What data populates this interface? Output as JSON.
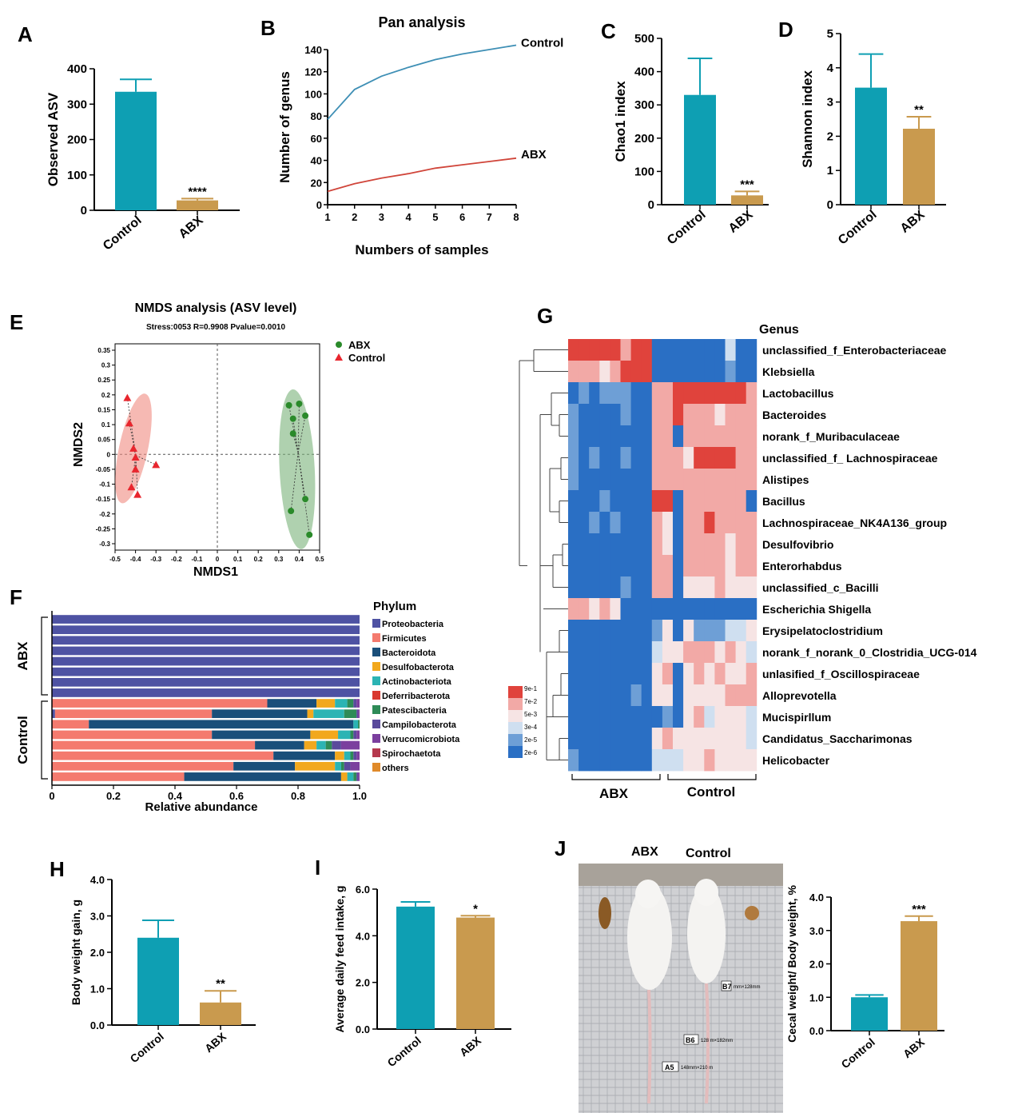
{
  "colors": {
    "control": "#0e9fb3",
    "abx": "#c99a4e",
    "phylum_blue": "#4e52a3",
    "heat_high": "#d73027",
    "heat_low": "#2166c9",
    "nmds_abx": "#2a8a2a",
    "nmds_control": "#e8262e"
  },
  "chart_data": [
    {
      "panel": "A",
      "type": "bar",
      "title": "",
      "ylabel": "Observed ASV",
      "categories": [
        "Control",
        "ABX"
      ],
      "values": [
        335,
        28
      ],
      "errors": [
        35,
        5
      ],
      "ylim": [
        0,
        400
      ],
      "yticks": [
        "0",
        "100",
        "200",
        "300",
        "400"
      ],
      "significance": [
        "",
        "****"
      ]
    },
    {
      "panel": "B",
      "type": "line",
      "title": "Pan analysis",
      "xlabel": "Numbers of samples",
      "ylabel": "Number of genus",
      "xlim": [
        1,
        8
      ],
      "ylim": [
        0,
        140
      ],
      "xticks": [
        "1",
        "2",
        "3",
        "4",
        "5",
        "6",
        "7",
        "8"
      ],
      "yticks": [
        "0",
        "20",
        "40",
        "60",
        "80",
        "100",
        "120",
        "140"
      ],
      "x": [
        1,
        2,
        3,
        4,
        5,
        6,
        7,
        8
      ],
      "series": [
        {
          "name": "Control",
          "values": [
            77,
            104,
            116,
            124,
            131,
            136,
            140,
            144
          ]
        },
        {
          "name": "ABX",
          "values": [
            12,
            19,
            24,
            28,
            33,
            36,
            39,
            42
          ]
        }
      ]
    },
    {
      "panel": "C",
      "type": "bar",
      "title": "",
      "ylabel": "Chao1 index",
      "categories": [
        "Control",
        "ABX"
      ],
      "values": [
        330,
        28
      ],
      "errors": [
        110,
        12
      ],
      "ylim": [
        0,
        500
      ],
      "yticks": [
        "0",
        "100",
        "200",
        "300",
        "400",
        "500"
      ],
      "significance": [
        "",
        "***"
      ]
    },
    {
      "panel": "D",
      "type": "bar",
      "title": "",
      "ylabel": "Shannon index",
      "categories": [
        "Control",
        "ABX"
      ],
      "values": [
        3.42,
        2.22
      ],
      "errors": [
        0.98,
        0.35
      ],
      "ylim": [
        0,
        5
      ],
      "yticks": [
        "0",
        "1",
        "2",
        "3",
        "4",
        "5"
      ],
      "significance": [
        "",
        "**"
      ]
    },
    {
      "panel": "E",
      "type": "scatter",
      "title": "NMDS analysis (ASV level)",
      "subtitle": "Stress:0053 R=0.9908 Pvalue=0.0010",
      "xlabel": "NMDS1",
      "ylabel": "NMDS2",
      "xlim": [
        -0.5,
        0.5
      ],
      "ylim": [
        -0.3,
        0.35
      ],
      "xticks": [
        "-0.5",
        "-0.4",
        "-0.3",
        "-0.2",
        "-0.1",
        "0",
        "0.1",
        "0.2",
        "0.3",
        "0.4",
        "0.5"
      ],
      "yticks": [
        "0.35",
        "0.3",
        "0.25",
        "0.2",
        "0.15",
        "0.1",
        "0.05",
        "0",
        "-0.05",
        "-0.1",
        "-0.15",
        "-0.2",
        "-0.25",
        "-0.3"
      ],
      "legend_position": "top-right",
      "series": [
        {
          "name": "ABX",
          "x": [
            0.35,
            0.37,
            0.37,
            0.4,
            0.43,
            0.36,
            0.43,
            0.45
          ],
          "y": [
            0.165,
            0.12,
            0.07,
            0.17,
            -0.15,
            -0.19,
            0.13,
            -0.27
          ]
        },
        {
          "name": "Control",
          "x": [
            -0.44,
            -0.43,
            -0.41,
            -0.4,
            -0.4,
            -0.42,
            -0.39,
            -0.3
          ],
          "y": [
            0.19,
            0.105,
            0.02,
            -0.01,
            -0.05,
            -0.11,
            -0.135,
            -0.035
          ]
        }
      ]
    },
    {
      "panel": "F",
      "type": "bar",
      "orientation": "horizontal-stacked",
      "title": "",
      "xlabel": "Relative abundance",
      "xlim": [
        0,
        1
      ],
      "xticks": [
        "0",
        "0.2",
        "0.4",
        "0.6",
        "0.8",
        "1.0"
      ],
      "legend_title": "Phylum",
      "phyla": [
        "Proteobacteria",
        "Firmicutes",
        "Bacteroidota",
        "Desulfobacterota",
        "Actinobacteriota",
        "Deferribacterota",
        "Patescibacteria",
        "Campilobacterota",
        "Verrucomicrobiota",
        "Spirochaetota",
        "others"
      ],
      "phylum_colors": [
        "#4e52a3",
        "#f47a6e",
        "#1a4f7a",
        "#f2a81d",
        "#2bb4b4",
        "#d9382f",
        "#2e8b57",
        "#5a4a9c",
        "#7b3f9e",
        "#b5394e",
        "#e08a2a"
      ],
      "groups": [
        "ABX",
        "Control"
      ],
      "rows": [
        {
          "group": "ABX",
          "values": [
            1,
            0,
            0,
            0,
            0,
            0,
            0,
            0,
            0,
            0,
            0
          ]
        },
        {
          "group": "ABX",
          "values": [
            1,
            0,
            0,
            0,
            0,
            0,
            0,
            0,
            0,
            0,
            0
          ]
        },
        {
          "group": "ABX",
          "values": [
            1,
            0,
            0,
            0,
            0,
            0,
            0,
            0,
            0,
            0,
            0
          ]
        },
        {
          "group": "ABX",
          "values": [
            1,
            0,
            0,
            0,
            0,
            0,
            0,
            0,
            0,
            0,
            0
          ]
        },
        {
          "group": "ABX",
          "values": [
            1,
            0,
            0,
            0,
            0,
            0,
            0,
            0,
            0,
            0,
            0
          ]
        },
        {
          "group": "ABX",
          "values": [
            1,
            0,
            0,
            0,
            0,
            0,
            0,
            0,
            0,
            0,
            0
          ]
        },
        {
          "group": "ABX",
          "values": [
            1,
            0,
            0,
            0,
            0,
            0,
            0,
            0,
            0,
            0,
            0
          ]
        },
        {
          "group": "ABX",
          "values": [
            1,
            0,
            0,
            0,
            0,
            0,
            0,
            0,
            0,
            0,
            0
          ]
        },
        {
          "group": "Control",
          "values": [
            0,
            0.7,
            0.16,
            0.06,
            0.04,
            0,
            0.02,
            0.01,
            0.01,
            0,
            0
          ]
        },
        {
          "group": "Control",
          "values": [
            0.01,
            0.51,
            0.31,
            0.02,
            0.1,
            0,
            0.04,
            0.005,
            0.005,
            0,
            0
          ]
        },
        {
          "group": "Control",
          "values": [
            0,
            0.12,
            0.86,
            0,
            0.015,
            0,
            0.005,
            0,
            0,
            0,
            0
          ]
        },
        {
          "group": "Control",
          "values": [
            0,
            0.52,
            0.32,
            0.09,
            0.04,
            0,
            0.01,
            0.01,
            0.01,
            0,
            0
          ]
        },
        {
          "group": "Control",
          "values": [
            0,
            0.66,
            0.16,
            0.04,
            0.03,
            0,
            0.02,
            0.03,
            0.06,
            0,
            0
          ]
        },
        {
          "group": "Control",
          "values": [
            0,
            0.72,
            0.2,
            0.03,
            0.02,
            0,
            0.01,
            0.01,
            0.01,
            0,
            0
          ]
        },
        {
          "group": "Control",
          "values": [
            0,
            0.59,
            0.2,
            0.13,
            0.02,
            0,
            0.01,
            0.02,
            0.03,
            0,
            0
          ]
        },
        {
          "group": "Control",
          "values": [
            0,
            0.43,
            0.51,
            0.02,
            0.02,
            0,
            0.01,
            0.005,
            0.005,
            0,
            0
          ]
        }
      ]
    },
    {
      "panel": "G",
      "type": "heatmap",
      "title": "",
      "row_header": "Genus",
      "column_groups": [
        "ABX",
        "Control"
      ],
      "colorbar_labels": [
        "9e-1",
        "7e-2",
        "5e-3",
        "3e-4",
        "2e-5",
        "2e-6"
      ],
      "rows": [
        "unclassified_f_Enterobacteriaceae",
        "Klebsiella",
        "Lactobacillus",
        "Bacteroides",
        "norank_f_Muribaculaceae",
        "unclassified_f_ Lachnospiraceae",
        "Alistipes",
        "Bacillus",
        "Lachnospiraceae_NK4A136_group",
        "Desulfovibrio",
        "Enterorhabdus",
        "unclassified_c_Bacilli",
        "Escherichia Shigella",
        "Erysipelatoclostridium",
        "norank_f_norank_0_Clostridia_UCG-014",
        "unlasified_f_Oscillospiraceae",
        "Alloprevotella",
        "Mucispirllum",
        "Candidatus_Saccharimonas",
        "Helicobacter"
      ],
      "values": [
        [
          5,
          5,
          5,
          5,
          5,
          4,
          5,
          5,
          0,
          0,
          0,
          0,
          0,
          0,
          0,
          2,
          0,
          0
        ],
        [
          4,
          4,
          4,
          3,
          4,
          5,
          5,
          5,
          0,
          0,
          0,
          0,
          0,
          0,
          0,
          1,
          0,
          0
        ],
        [
          0,
          1,
          0,
          1,
          1,
          1,
          0,
          0,
          4,
          4,
          5,
          5,
          5,
          5,
          5,
          5,
          5,
          4
        ],
        [
          1,
          0,
          0,
          0,
          0,
          1,
          0,
          0,
          4,
          4,
          5,
          4,
          4,
          4,
          3,
          4,
          4,
          4
        ],
        [
          1,
          0,
          0,
          0,
          0,
          0,
          0,
          0,
          4,
          4,
          0,
          4,
          4,
          4,
          4,
          4,
          4,
          4
        ],
        [
          1,
          0,
          1,
          0,
          0,
          1,
          0,
          0,
          4,
          4,
          4,
          3,
          5,
          5,
          5,
          5,
          4,
          4
        ],
        [
          1,
          0,
          0,
          0,
          0,
          0,
          0,
          0,
          4,
          4,
          4,
          4,
          4,
          4,
          4,
          4,
          4,
          4
        ],
        [
          0,
          0,
          0,
          1,
          0,
          0,
          0,
          0,
          5,
          5,
          0,
          4,
          4,
          4,
          4,
          4,
          4,
          0
        ],
        [
          0,
          0,
          1,
          0,
          1,
          0,
          0,
          0,
          4,
          3,
          0,
          4,
          4,
          5,
          4,
          4,
          4,
          4
        ],
        [
          0,
          0,
          0,
          0,
          0,
          0,
          0,
          0,
          4,
          3,
          0,
          4,
          4,
          4,
          4,
          3,
          4,
          4
        ],
        [
          0,
          0,
          0,
          0,
          0,
          0,
          0,
          0,
          4,
          4,
          0,
          4,
          4,
          4,
          4,
          3,
          4,
          4
        ],
        [
          0,
          0,
          0,
          0,
          0,
          1,
          0,
          0,
          4,
          4,
          0,
          3,
          3,
          3,
          4,
          3,
          3,
          3
        ],
        [
          4,
          4,
          3,
          4,
          3,
          0,
          0,
          0,
          0,
          0,
          0,
          0,
          0,
          0,
          0,
          0,
          0,
          0
        ],
        [
          0,
          0,
          0,
          0,
          0,
          0,
          0,
          0,
          1,
          3,
          0,
          3,
          1,
          1,
          1,
          2,
          2,
          3
        ],
        [
          0,
          0,
          0,
          0,
          0,
          0,
          0,
          0,
          2,
          3,
          3,
          4,
          4,
          4,
          3,
          4,
          3,
          2
        ],
        [
          0,
          0,
          0,
          0,
          0,
          0,
          0,
          0,
          3,
          4,
          0,
          3,
          4,
          3,
          4,
          3,
          3,
          4
        ],
        [
          0,
          0,
          0,
          0,
          0,
          0,
          1,
          0,
          3,
          3,
          0,
          3,
          3,
          3,
          3,
          4,
          4,
          4
        ],
        [
          0,
          0,
          0,
          0,
          0,
          0,
          0,
          0,
          0,
          1,
          0,
          3,
          4,
          2,
          3,
          3,
          3,
          2
        ],
        [
          0,
          0,
          0,
          0,
          0,
          0,
          0,
          0,
          3,
          4,
          3,
          3,
          3,
          3,
          3,
          3,
          3,
          2
        ],
        [
          1,
          0,
          0,
          0,
          0,
          0,
          0,
          0,
          2,
          2,
          2,
          3,
          3,
          4,
          3,
          3,
          3,
          3
        ]
      ]
    },
    {
      "panel": "H",
      "type": "bar",
      "title": "",
      "ylabel": "Body weight gain, g",
      "categories": [
        "Control",
        "ABX"
      ],
      "values": [
        2.4,
        0.62
      ],
      "errors": [
        0.48,
        0.32
      ],
      "ylim": [
        0,
        4
      ],
      "yticks": [
        "0.0",
        "1.0",
        "2.0",
        "3.0",
        "4.0"
      ],
      "significance": [
        "",
        "**"
      ]
    },
    {
      "panel": "I",
      "type": "bar",
      "title": "",
      "ylabel": "Average daily feed intake, g",
      "categories": [
        "Control",
        "ABX"
      ],
      "values": [
        5.25,
        4.78
      ],
      "errors": [
        0.2,
        0.08
      ],
      "ylim": [
        0,
        6
      ],
      "yticks": [
        "0.0",
        "2.0",
        "4.0",
        "6.0"
      ],
      "significance": [
        "",
        "*"
      ]
    },
    {
      "panel": "J",
      "type": "bar",
      "title": "",
      "ylabel": "Cecal weight/ Body weight, %",
      "categories": [
        "Control",
        "ABX"
      ],
      "values": [
        1.0,
        3.28
      ],
      "errors": [
        0.07,
        0.15
      ],
      "ylim": [
        0,
        4
      ],
      "yticks": [
        "0.0",
        "1.0",
        "2.0",
        "3.0",
        "4.0"
      ],
      "significance": [
        "",
        "***"
      ]
    }
  ],
  "photo": {
    "labels": [
      "ABX",
      "Control"
    ],
    "ruler_marks": [
      "B7",
      "B6",
      "A5"
    ],
    "ruler_texts": [
      "mm×128mm",
      "128 m×182mm",
      "148mm×210 m"
    ]
  },
  "panel_letters": [
    "A",
    "B",
    "C",
    "D",
    "E",
    "F",
    "G",
    "H",
    "I",
    "J"
  ]
}
